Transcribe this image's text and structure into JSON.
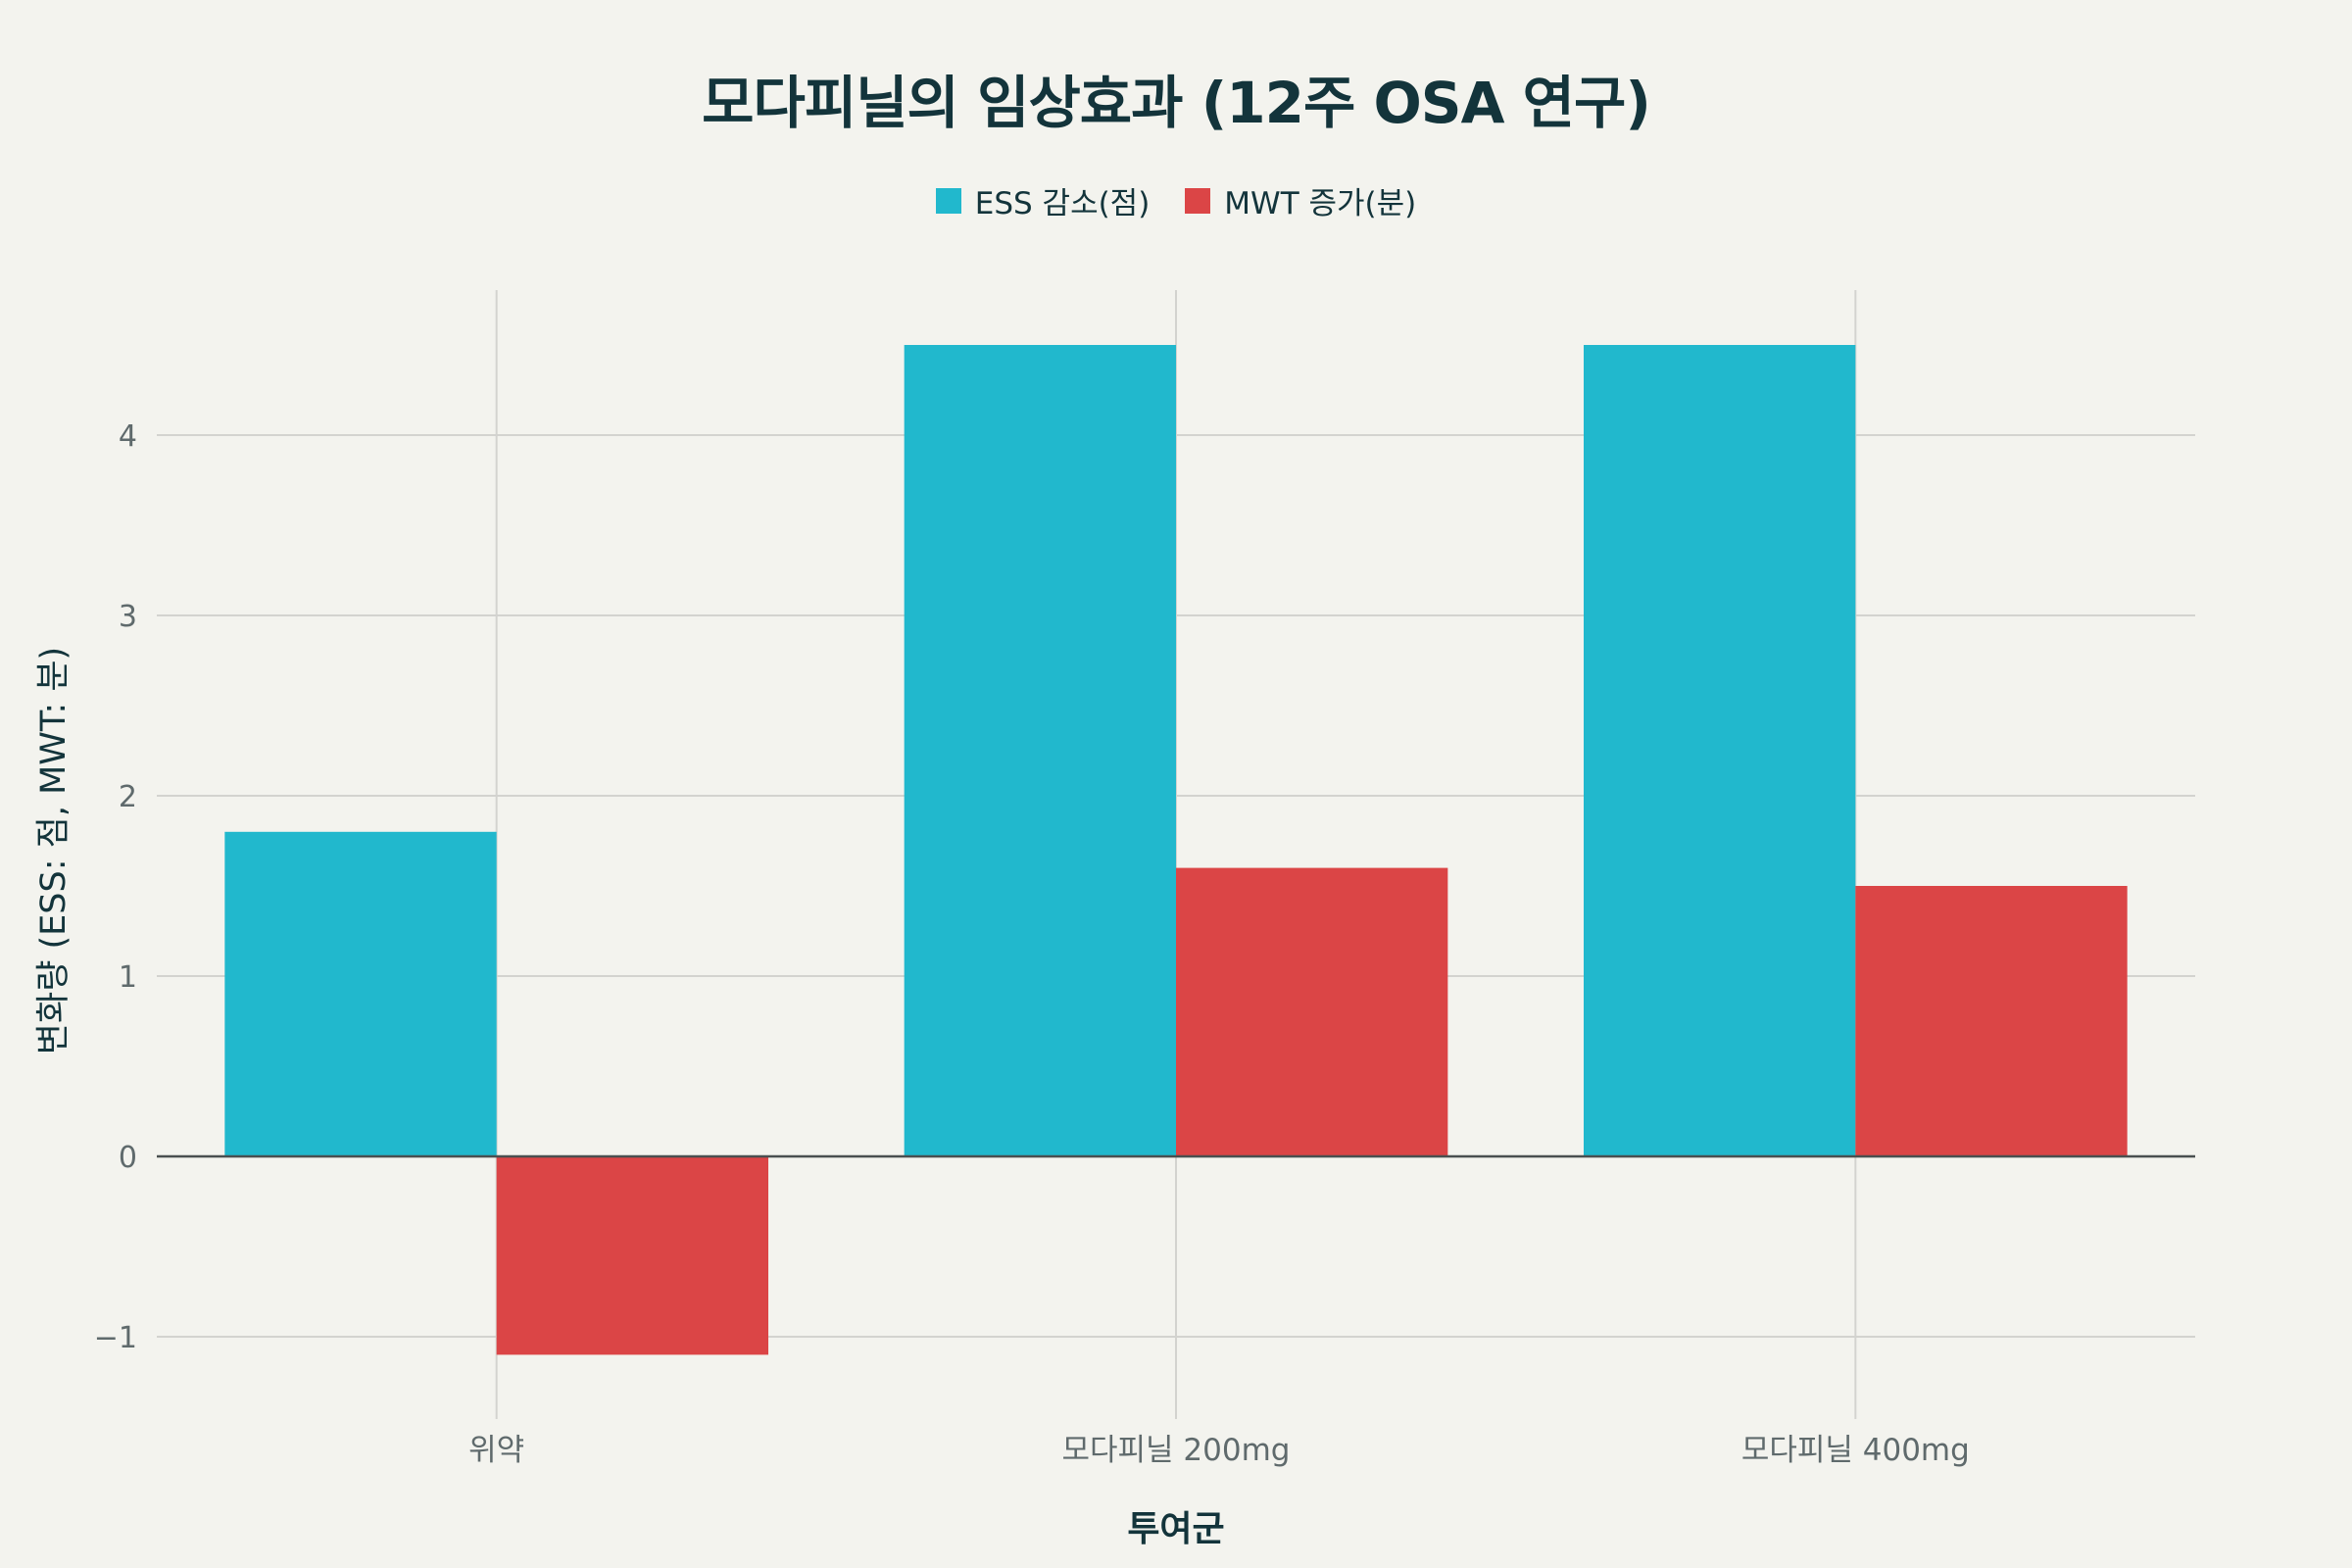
{
  "chart_data": {
    "type": "bar",
    "title": "모다피닐의 임상효과 (12주 OSA 연구)",
    "xlabel": "투여군",
    "ylabel": "변화량 (ESS: 점, MWT: 분)",
    "categories": [
      "위약",
      "모다피닐 200mg",
      "모다피닐 400mg"
    ],
    "series": [
      {
        "name": "ESS 감소(점)",
        "values": [
          1.8,
          4.5,
          4.5
        ],
        "color": "#21b8cd"
      },
      {
        "name": "MWT 증가(분)",
        "values": [
          -1.1,
          1.6,
          1.5
        ],
        "color": "#db4546"
      }
    ],
    "ylim": [
      -1.4,
      4.8
    ],
    "yticks": [
      -1,
      0,
      1,
      2,
      3,
      4
    ],
    "ytick_labels": [
      "−1",
      "0",
      "1",
      "2",
      "3",
      "4"
    ],
    "grid": true,
    "legend_position": "top-center"
  }
}
